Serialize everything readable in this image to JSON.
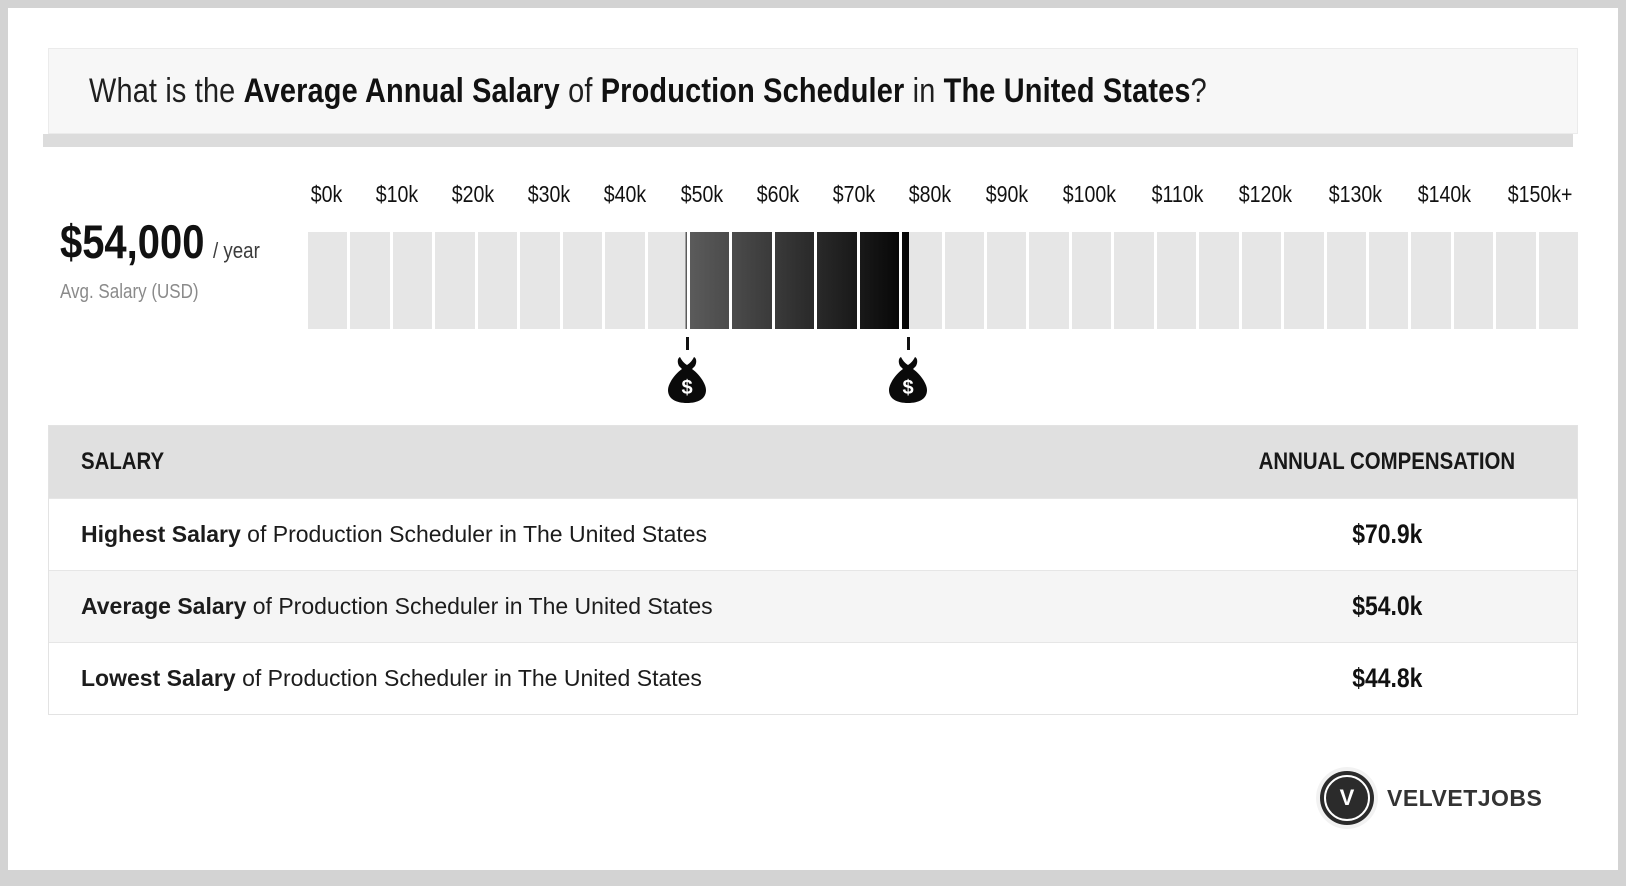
{
  "title": {
    "prefix": "What is the ",
    "bold1": "Average Annual Salary",
    "mid1": " of ",
    "bold2": "Production Scheduler",
    "mid2": " in ",
    "bold3": "The United States",
    "suffix": "?"
  },
  "stat": {
    "amount": "$54,000",
    "per": "/ year",
    "caption": "Avg. Salary (USD)"
  },
  "scale": {
    "tick_labels": [
      "$0k",
      "$10k",
      "$20k",
      "$30k",
      "$40k",
      "$50k",
      "$60k",
      "$70k",
      "$80k",
      "$90k",
      "$100k",
      "$110k",
      "$120k",
      "$130k",
      "$140k",
      "$150k+"
    ],
    "min_k": 0,
    "max_k": 150,
    "cell_step_k": 5,
    "num_cells": 30,
    "base_cell_color": "#e6e6e6",
    "highlight": {
      "low_k": 44.8,
      "high_k": 70.9,
      "gradient_start": "#5c5c5c",
      "gradient_end": "#050505"
    },
    "markers_k": [
      44.8,
      70.9
    ],
    "marker_icon": "money-bag-icon",
    "marker_symbol": "$"
  },
  "table": {
    "columns": [
      "SALARY",
      "ANNUAL COMPENSATION"
    ],
    "rows": [
      {
        "label_bold": "Highest Salary",
        "label_rest": " of Production Scheduler in The United States",
        "value": "$70.9k"
      },
      {
        "label_bold": "Average Salary",
        "label_rest": " of Production Scheduler in The United States",
        "value": "$54.0k"
      },
      {
        "label_bold": "Lowest Salary",
        "label_rest": " of Production Scheduler in The United States",
        "value": "$44.8k"
      }
    ]
  },
  "branding": {
    "logo_letter": "V",
    "brand_name": "VELVETJOBS"
  },
  "colors": {
    "frame": "#d3d3d3",
    "banner_bg": "#f7f7f7",
    "banner_shadow": "#dcdcdc",
    "header_bg": "#e0e0e0",
    "alt_row_bg": "#f5f5f5",
    "muted_text": "#8a8a8a",
    "logo_circle": "#2b2b2b"
  },
  "chart_data": {
    "type": "bar",
    "subtype": "salary-range-scale",
    "title": "What is the Average Annual Salary of Production Scheduler in The United States?",
    "x_tick_labels": [
      "$0k",
      "$10k",
      "$20k",
      "$30k",
      "$40k",
      "$50k",
      "$60k",
      "$70k",
      "$80k",
      "$90k",
      "$100k",
      "$110k",
      "$120k",
      "$130k",
      "$140k",
      "$150k+"
    ],
    "axis_range_usd_k": [
      0,
      150
    ],
    "segment_width_usd_k": 5,
    "highlighted_range_usd_k": [
      44.8,
      70.9
    ],
    "marker_positions_usd_k": [
      44.8,
      70.9
    ],
    "values": {
      "highest_salary_usd_k": 70.9,
      "average_salary_usd_k": 54.0,
      "lowest_salary_usd_k": 44.8,
      "average_salary_usd": 54000
    },
    "legend_position": "none",
    "grid": false
  }
}
